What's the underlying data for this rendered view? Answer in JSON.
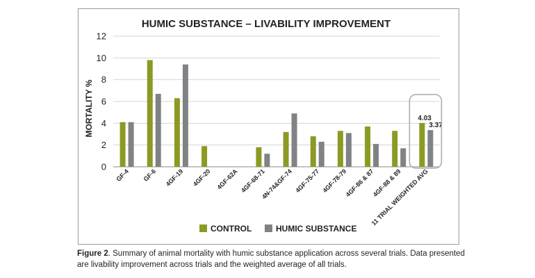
{
  "chart_data": {
    "type": "bar",
    "title": "HUMIC SUBSTANCE – LIVABILITY IMPROVEMENT",
    "xlabel": "",
    "ylabel": "MORTALITY %",
    "ylim": [
      0,
      12
    ],
    "yticks": [
      "0",
      "2",
      "4",
      "6",
      "8",
      "10",
      "12"
    ],
    "grid": true,
    "legend_position": "bottom",
    "categories": [
      "GF-4",
      "GF-6",
      "4GF-19",
      "4GF-20",
      "4GF-62A",
      "4GF-68-71",
      "4N-74&GF-74",
      "4GF-75-77",
      "4GF-78-79",
      "4GF-86 & 87",
      "4GF-88 & 89",
      "11 TRIAL WEIGHTED AVG"
    ],
    "series": [
      {
        "name": "CONTROL",
        "color": "#8c9a23",
        "values": [
          4.1,
          9.8,
          6.3,
          1.9,
          0,
          1.8,
          3.2,
          2.8,
          3.3,
          3.7,
          3.3,
          4.03
        ]
      },
      {
        "name": "HUMIC SUBSTANCE",
        "color": "#808285",
        "values": [
          4.1,
          6.7,
          9.4,
          0,
          0,
          1.2,
          4.9,
          2.3,
          3.1,
          2.1,
          1.7,
          3.37
        ]
      }
    ],
    "annotations": [
      "4.03",
      "3.37"
    ],
    "highlight_color": "#a7a9ac"
  },
  "caption": {
    "label": "Figure 2",
    "text": ". Summary of animal mortality with humic substance application across several trials. Data presented are livability improvement across trials and the weighted average of all trials."
  }
}
